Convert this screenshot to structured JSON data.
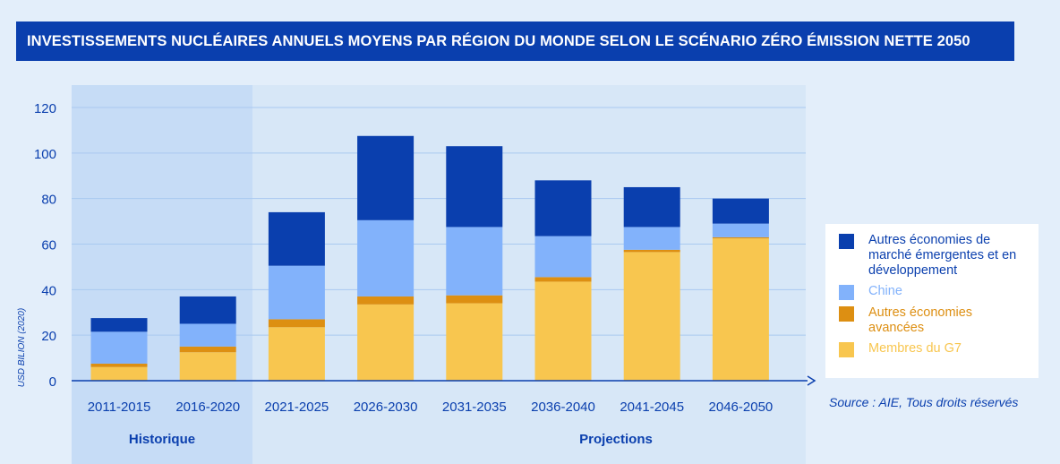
{
  "title": "INVESTISSEMENTS NUCLÉAIRES ANNUELS MOYENS PAR RÉGION DU MONDE SELON LE SCÉNARIO ZÉRO ÉMISSION NETTE 2050",
  "source": "Source : AIE, Tous droits réservés",
  "colors": {
    "page_bg": "#e3eefa",
    "plot_bg": "#d7e7f7",
    "historic_bg": "#c6dcf6",
    "title_bg": "#0a3fae",
    "axis": "#0a3fae",
    "grid": "#a9c9f0"
  },
  "chart_data": {
    "type": "bar",
    "stacked": true,
    "ylabel": "USD BILION (2020)",
    "ylim": [
      0,
      120
    ],
    "yticks": [
      0,
      20,
      40,
      60,
      80,
      100,
      120
    ],
    "grid": true,
    "legend_position": "right",
    "categories": [
      "2011-2015",
      "2016-2020",
      "2021-2025",
      "2026-2030",
      "2031-2035",
      "2036-2040",
      "2041-2045",
      "2046-2050"
    ],
    "groups": [
      {
        "label": "Historique",
        "categories": [
          "2011-2015",
          "2016-2020"
        ]
      },
      {
        "label": "Projections",
        "categories": [
          "2021-2025",
          "2026-2030",
          "2031-2035",
          "2036-2040",
          "2041-2045",
          "2046-2050"
        ]
      }
    ],
    "series": [
      {
        "name": "Membres du G7",
        "color": "#f8c64f",
        "values": [
          6,
          12.5,
          23.5,
          33.5,
          34,
          43.5,
          56.5,
          62.5
        ]
      },
      {
        "name": "Autres économies avancées",
        "color": "#dd8f12",
        "values": [
          1.5,
          2.5,
          3.5,
          3.5,
          3.5,
          2,
          1,
          0.5
        ]
      },
      {
        "name": "Chine",
        "color": "#82b2fb",
        "values": [
          14,
          10,
          23.5,
          33.5,
          30,
          18,
          10,
          6
        ]
      },
      {
        "name": "Autres économies de marché émergentes et en développement",
        "color": "#0a3fae",
        "values": [
          6,
          12,
          23.5,
          37,
          35.5,
          24.5,
          17.5,
          11
        ]
      }
    ]
  }
}
